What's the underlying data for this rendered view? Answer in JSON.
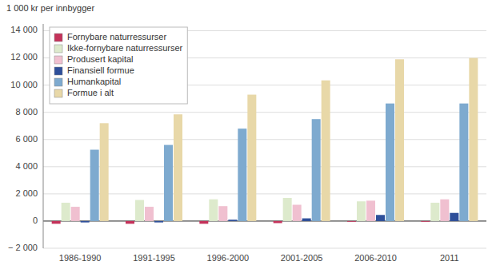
{
  "chart_data": {
    "type": "bar",
    "ylabel": "1 000 kr per innbygger",
    "categories": [
      "1986-1990",
      "1991-1995",
      "1996-2000",
      "2001-2005",
      "2006-2010",
      "2011"
    ],
    "series": [
      {
        "name": "Fornybare naturressurser",
        "color": "#c4325a",
        "values": [
          -200,
          -200,
          -200,
          -150,
          -50,
          -50
        ]
      },
      {
        "name": "Ikke-fornybare naturressurser",
        "color": "#ddeacc",
        "values": [
          1350,
          1550,
          1600,
          1700,
          1450,
          1350
        ]
      },
      {
        "name": "Produsert kapital",
        "color": "#f0c0d0",
        "values": [
          1050,
          1050,
          1100,
          1200,
          1500,
          1600
        ]
      },
      {
        "name": "Finansiell formue",
        "color": "#2e4f9a",
        "values": [
          -100,
          -100,
          100,
          200,
          450,
          600
        ]
      },
      {
        "name": "Humankapital",
        "color": "#7eaacf",
        "values": [
          5250,
          5600,
          6800,
          7500,
          8650,
          8650
        ]
      },
      {
        "name": "Formue i alt",
        "color": "#e8d8a8",
        "values": [
          7200,
          7850,
          9300,
          10350,
          11900,
          12000
        ]
      }
    ],
    "ylim": [
      -2000,
      14500
    ],
    "yticks": [
      {
        "value": -2000,
        "label": "− 2 000"
      },
      0,
      {
        "value": 2000,
        "label": "2 000"
      },
      {
        "value": 4000,
        "label": "4 000"
      },
      {
        "value": 6000,
        "label": "6 000"
      },
      {
        "value": 8000,
        "label": "8 000"
      },
      {
        "value": 10000,
        "label": "10 000"
      },
      {
        "value": 12000,
        "label": "12 000"
      },
      {
        "value": 14000,
        "label": "14 000"
      }
    ],
    "grid": true,
    "legend": "upper left"
  }
}
